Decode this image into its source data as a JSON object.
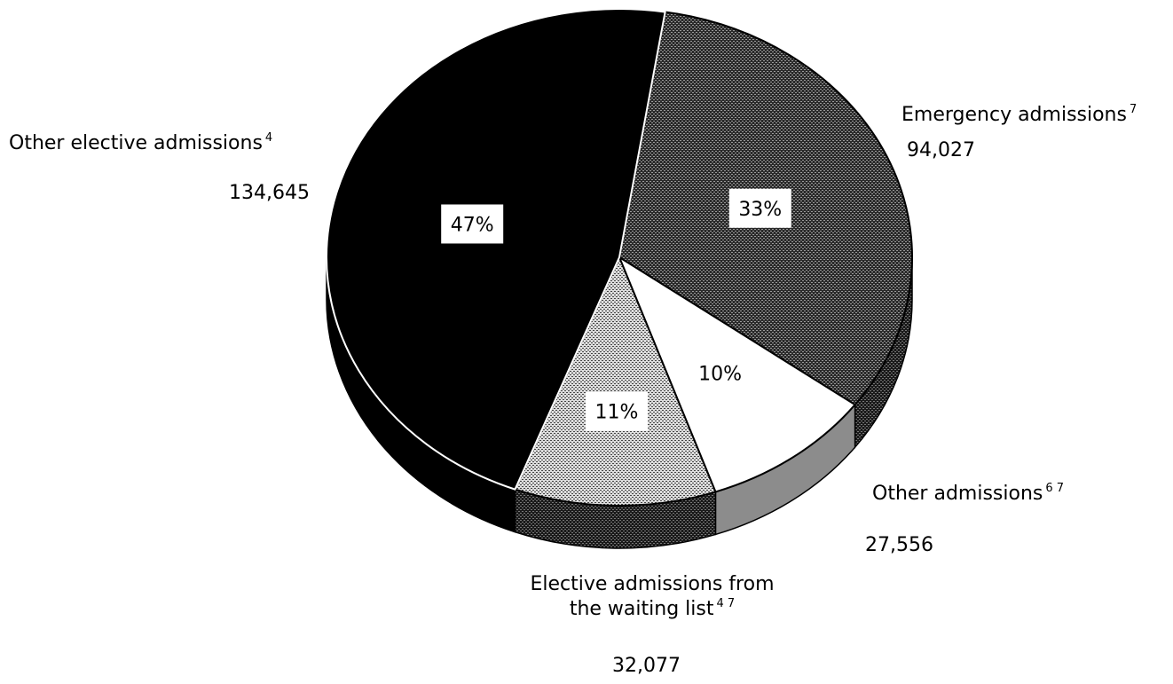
{
  "chart_data": {
    "type": "pie",
    "title": "",
    "slices": [
      {
        "name": "Other elective admissions",
        "footnote": "4",
        "value": 134645,
        "value_label": "134,645",
        "percent_label": "47%",
        "fill": "#000000",
        "pattern": "solid"
      },
      {
        "name": "Emergency admissions",
        "footnote": "7",
        "value": 94027,
        "value_label": "94,027",
        "percent_label": "33%",
        "fill": "#555555",
        "pattern": "dense-checker"
      },
      {
        "name": "Other admissions",
        "footnote": "6 7",
        "value": 27556,
        "value_label": "27,556",
        "percent_label": "10%",
        "fill": "#ffffff",
        "pattern": "solid"
      },
      {
        "name": "Elective admissions from the waiting list",
        "name_line1": "Elective admissions from",
        "name_line2": "the waiting list",
        "footnote": "4 7",
        "value": 32077,
        "value_label": "32,077",
        "percent_label": "11%",
        "fill": "#aaaaaa",
        "pattern": "light-checker"
      }
    ],
    "style": "3d-tilted"
  }
}
